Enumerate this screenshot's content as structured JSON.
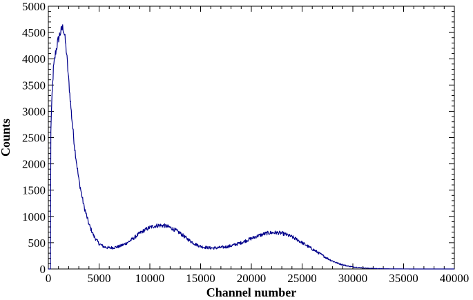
{
  "chart_data": {
    "type": "line",
    "title": "",
    "xlabel": "Channel number",
    "ylabel": "Counts",
    "xlim": [
      0,
      40000
    ],
    "ylim": [
      0,
      5000
    ],
    "x_ticks": [
      0,
      5000,
      10000,
      15000,
      20000,
      25000,
      30000,
      35000,
      40000
    ],
    "y_ticks": [
      0,
      500,
      1000,
      1500,
      2000,
      2500,
      3000,
      3500,
      4000,
      4500,
      5000
    ],
    "x_tick_labels": [
      "0",
      "5000",
      "10000",
      "15000",
      "20000",
      "25000",
      "30000",
      "35000",
      "40000"
    ],
    "y_tick_labels": [
      "0",
      "500",
      "1000",
      "1500",
      "2000",
      "2500",
      "3000",
      "3500",
      "4000",
      "4500",
      "5000"
    ],
    "grid": false,
    "line_color": "#00008B",
    "series": [
      {
        "x": [
          0,
          200,
          250,
          300,
          400,
          500,
          700,
          900,
          1100,
          1300,
          1450,
          1600,
          1800,
          2000,
          2300,
          2600,
          3000,
          3500,
          4000,
          4500,
          5000,
          5500,
          6000,
          6500,
          7000,
          7500,
          8000,
          8500,
          9000,
          9500,
          10000,
          10500,
          11000,
          11500,
          12000,
          12500,
          13000,
          13500,
          14000,
          14500,
          15000,
          15500,
          16000,
          16500,
          17000,
          17500,
          18000,
          18500,
          19000,
          19500,
          20000,
          20500,
          21000,
          21500,
          22000,
          22500,
          23000,
          23500,
          24000,
          24500,
          25000,
          25500,
          26000,
          26500,
          27000,
          27500,
          28000,
          28500,
          29000,
          29500,
          30000,
          30500,
          31000,
          31500,
          32000,
          32500,
          33000,
          33500,
          34000,
          35000,
          36000,
          38000,
          40000
        ],
        "y": [
          0,
          0,
          2600,
          3000,
          3400,
          3800,
          4100,
          4300,
          4450,
          4550,
          4600,
          4450,
          4100,
          3600,
          2900,
          2300,
          1700,
          1200,
          850,
          620,
          480,
          420,
          400,
          410,
          430,
          470,
          530,
          600,
          680,
          740,
          790,
          820,
          830,
          820,
          790,
          740,
          680,
          600,
          530,
          470,
          430,
          410,
          400,
          400,
          410,
          420,
          440,
          470,
          500,
          540,
          580,
          620,
          650,
          680,
          690,
          690,
          680,
          650,
          610,
          560,
          500,
          440,
          380,
          320,
          260,
          200,
          150,
          110,
          80,
          55,
          40,
          30,
          20,
          14,
          10,
          6,
          4,
          3,
          2,
          1,
          0,
          0,
          0
        ]
      }
    ]
  }
}
